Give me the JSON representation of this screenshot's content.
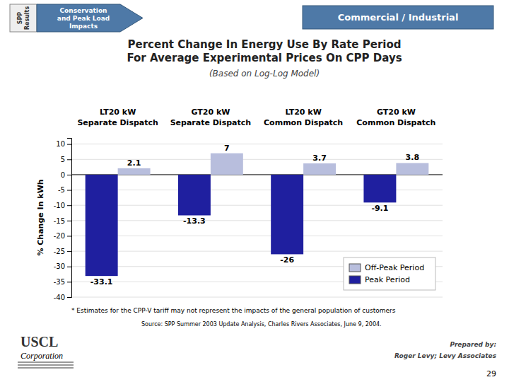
{
  "chart_data": {
    "type": "bar",
    "title": "Percent Change In Energy Use By Rate Period\nFor Average Experimental Prices On CPP Days",
    "subtitle": "(Based on Log-Log Model)",
    "y_label": "% Change In kWh",
    "categories": [
      "LT20 kW\nSeparate Dispatch",
      "GT20 kW\nSeparate Dispatch",
      "LT20 kW\nCommon Dispatch",
      "GT20 kW\nCommon Dispatch"
    ],
    "series": [
      {
        "name": "Peak Period",
        "color": "#1f1f9f",
        "values": [
          -33.1,
          -13.3,
          -26,
          -9.1
        ]
      },
      {
        "name": "Off-Peak Period",
        "color": "#b8bedd",
        "values": [
          2.1,
          7,
          3.7,
          3.8
        ]
      }
    ],
    "ylim": [
      -40,
      12
    ],
    "yticks": [
      10,
      5,
      0,
      -5,
      -10,
      -15,
      -20,
      -25,
      -30,
      -35,
      -40
    ],
    "grid": true,
    "legend": "lower right",
    "data_labels": true,
    "annotations": [
      "Commercial / Industrial",
      "SPP\nResults",
      "Conservation\nand Peak Load\nImpacts",
      "* Estimates for the CPP-V tariff may not represent the impacts of the general population of customers",
      "Source:   SPP Summer 2003 Update Analysis, Charles Rivers Associates, June 9, 2004.",
      "USCL",
      "Corporation",
      "Prepared by:",
      "Roger Levy; Levy Associates",
      "29"
    ]
  }
}
